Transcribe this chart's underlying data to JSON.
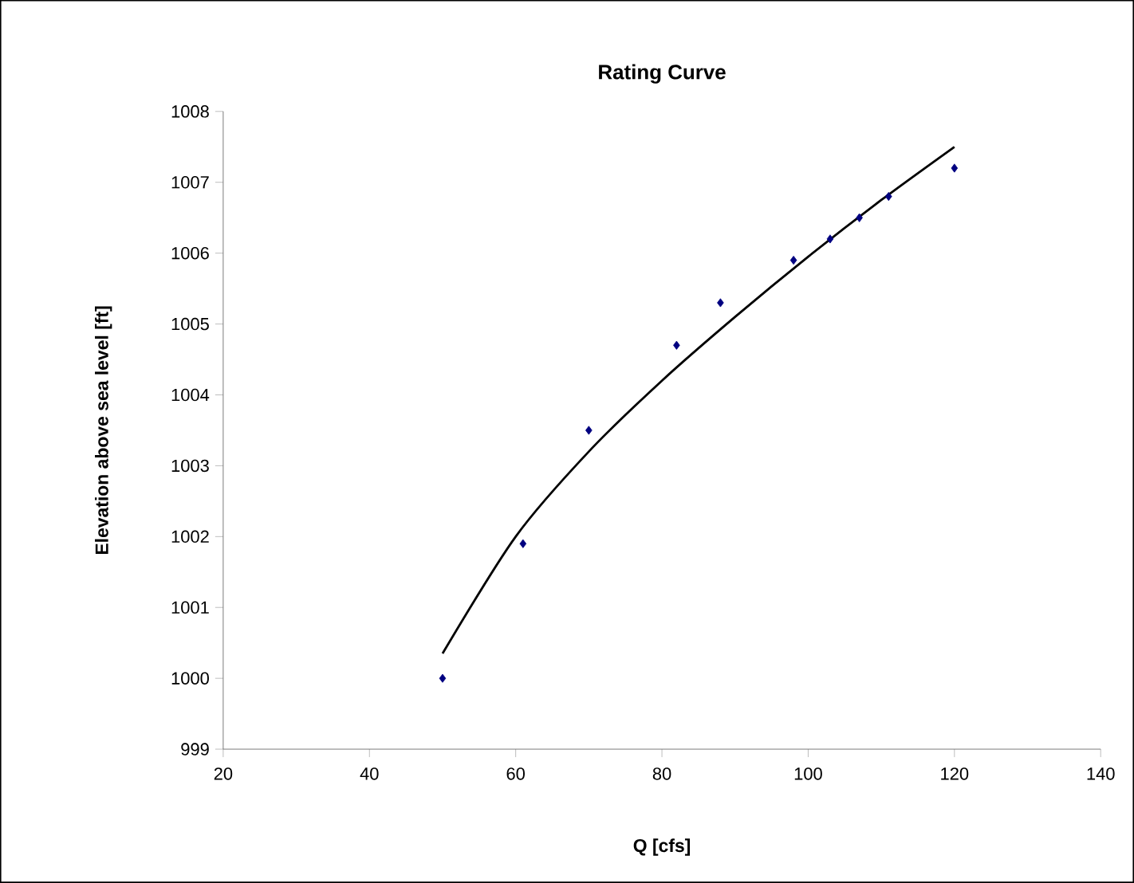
{
  "chart_data": {
    "type": "scatter",
    "title": "Rating Curve",
    "xlabel": "Q [cfs]",
    "ylabel": "Elevation above sea level [ft]",
    "xlim": [
      20,
      140
    ],
    "xticks": [
      20,
      40,
      60,
      80,
      100,
      120,
      140
    ],
    "ylim": [
      999,
      1008
    ],
    "yticks": [
      999,
      1000,
      1001,
      1002,
      1003,
      1004,
      1005,
      1006,
      1007,
      1008
    ],
    "grid": false,
    "marker": "diamond",
    "series": [
      {
        "type": "scatter",
        "color": "#000080",
        "x": [
          50,
          61,
          70,
          82,
          88,
          98,
          103,
          107,
          111,
          120
        ],
        "values": [
          1000,
          1001.9,
          1003.5,
          1004.7,
          1005.3,
          1005.9,
          1006.2,
          1006.5,
          1006.8,
          1007.2
        ]
      },
      {
        "type": "line",
        "color": "#000000",
        "marker": "none",
        "line_style": "solid",
        "x": [
          50,
          60,
          70,
          80,
          90,
          100,
          110,
          120
        ],
        "values": [
          1000.35,
          1002.0,
          1003.2,
          1004.2,
          1005.1,
          1005.95,
          1006.75,
          1007.5
        ]
      }
    ]
  }
}
